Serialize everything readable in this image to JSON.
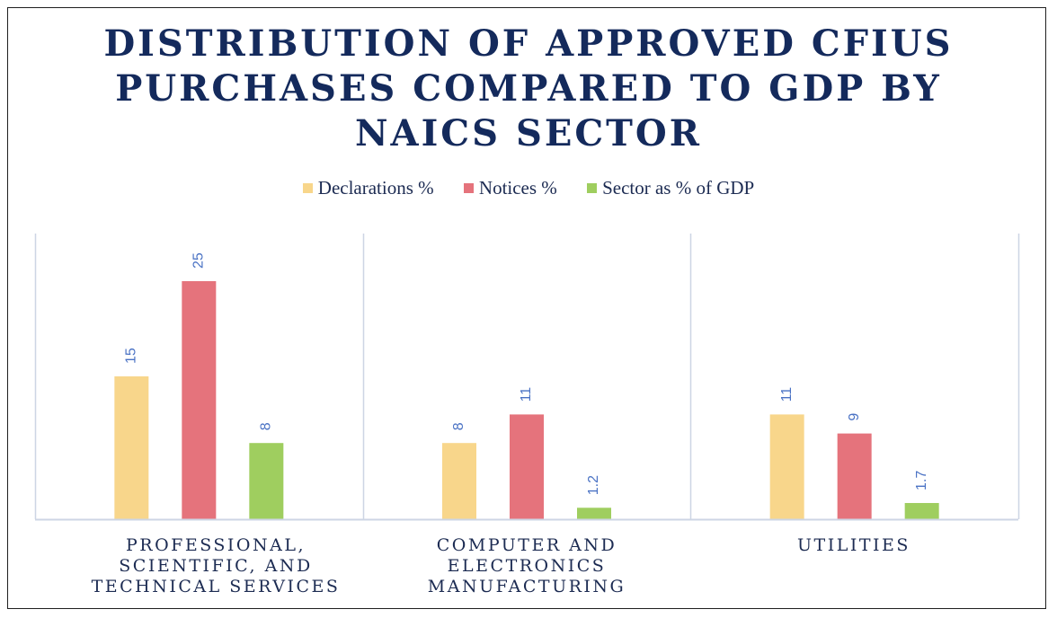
{
  "chart_data": {
    "type": "bar",
    "title_lines": [
      "DISTRIBUTION OF APPROVED CFIUS",
      "PURCHASES COMPARED TO GDP BY",
      "NAICS SECTOR"
    ],
    "categories": [
      {
        "lines": [
          "PROFESSIONAL,",
          "SCIENTIFIC, AND",
          "TECHNICAL SERVICES"
        ]
      },
      {
        "lines": [
          "COMPUTER AND",
          "ELECTRONICS",
          "MANUFACTURING"
        ]
      },
      {
        "lines": [
          "UTILITIES"
        ]
      }
    ],
    "series": [
      {
        "name": "Declarations %",
        "color": "#f8d68b",
        "values": [
          15,
          8,
          11
        ],
        "labels": [
          "15",
          "8",
          "11"
        ]
      },
      {
        "name": "Notices %",
        "color": "#e5737c",
        "values": [
          25,
          11,
          9
        ],
        "labels": [
          "25",
          "11",
          "9"
        ]
      },
      {
        "name": "Sector as % of GDP",
        "color": "#9fce5f",
        "values": [
          8,
          1.2,
          1.7
        ],
        "labels": [
          "8",
          "1.2",
          "1.7"
        ]
      }
    ],
    "legend_position": "top",
    "data_label_color": "#4a72c4",
    "ylim": [
      0,
      30
    ],
    "grid": false
  }
}
